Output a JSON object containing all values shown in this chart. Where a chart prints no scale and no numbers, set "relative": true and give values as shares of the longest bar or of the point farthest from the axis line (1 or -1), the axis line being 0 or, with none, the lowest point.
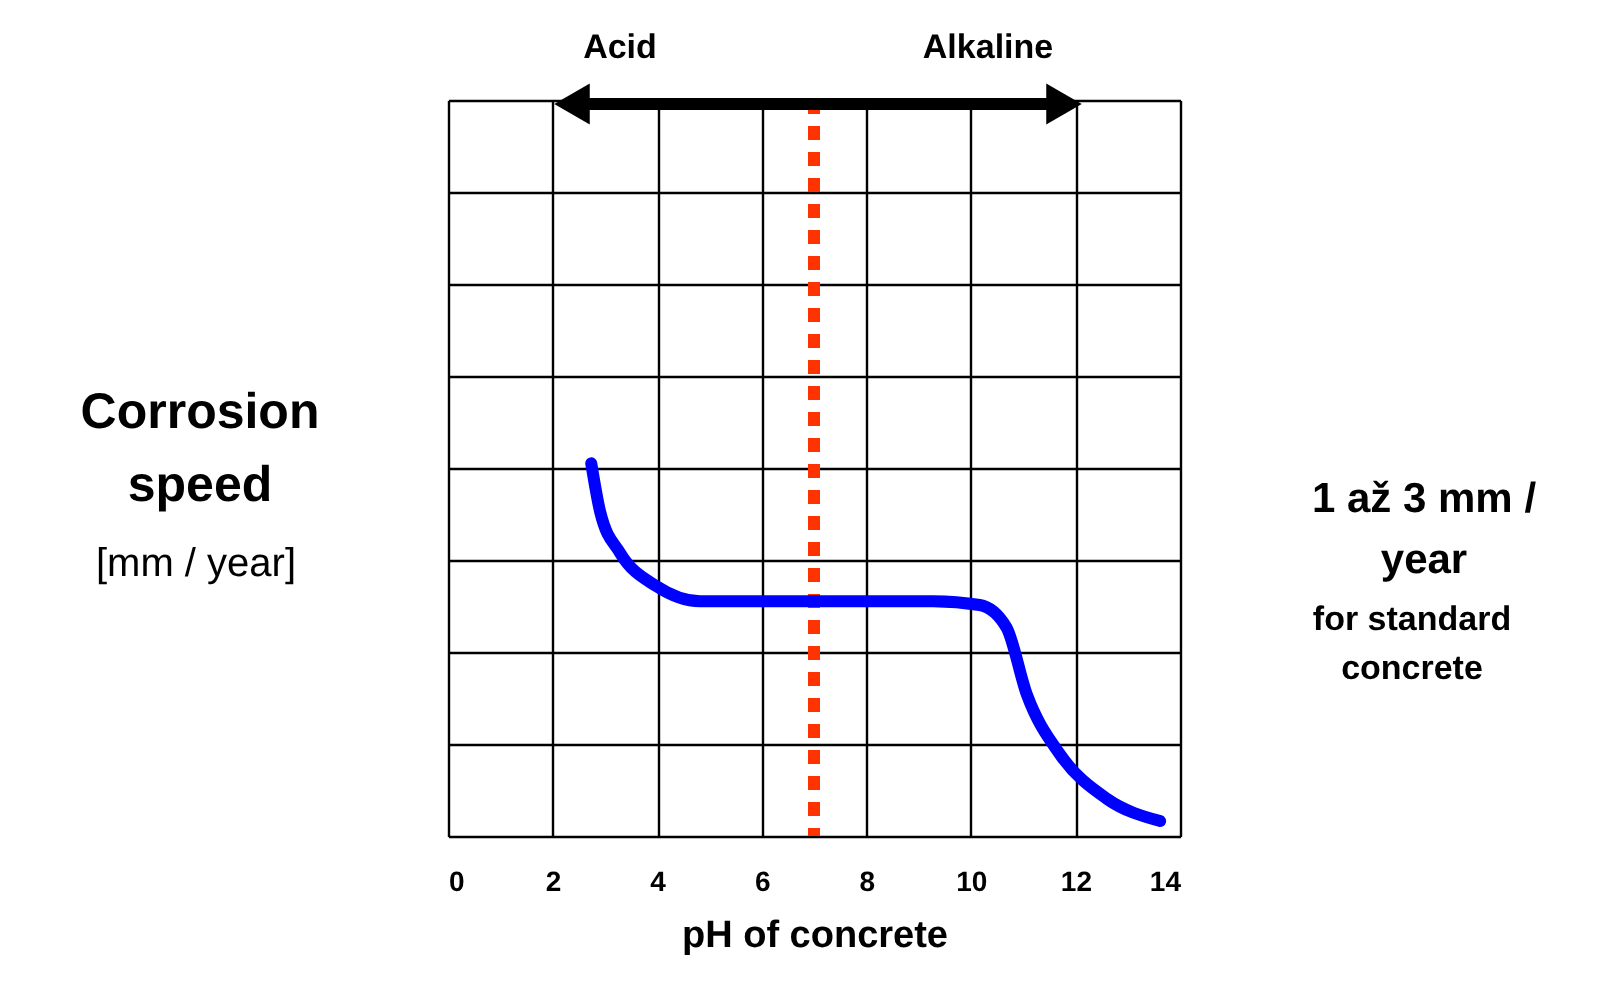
{
  "chart_data": {
    "type": "line",
    "relative": true,
    "x": [
      2.74,
      2.91,
      3.29,
      3.99,
      4.82,
      9.28,
      10.17,
      10.68,
      11.07,
      11.7,
      12.6,
      13.62
    ],
    "series": [
      {
        "color": "#0000ff",
        "values": [
          1,
          0.87,
          0.76,
          0.67,
          0.63,
          0.63,
          0.62,
          0.56,
          0.38,
          0.22,
          0.1,
          0.04
        ]
      }
    ],
    "xlim": [
      0,
      14
    ],
    "xticks": [
      0,
      2,
      4,
      6,
      8,
      10,
      12,
      14
    ],
    "xlabel": "pH of concrete",
    "ylabel": "Corrosion\nspeed",
    "annotations": [
      "[mm / year]",
      "Acid",
      "Alkaline",
      "1 až 3  mm /\nyear",
      "for standard\nconcrete"
    ],
    "ref_lines": [
      {
        "axis": "x",
        "value": 7,
        "color": "#ff3300",
        "line_style": "dotted"
      }
    ],
    "grid": true,
    "marker": "none",
    "line_style": "solid"
  }
}
